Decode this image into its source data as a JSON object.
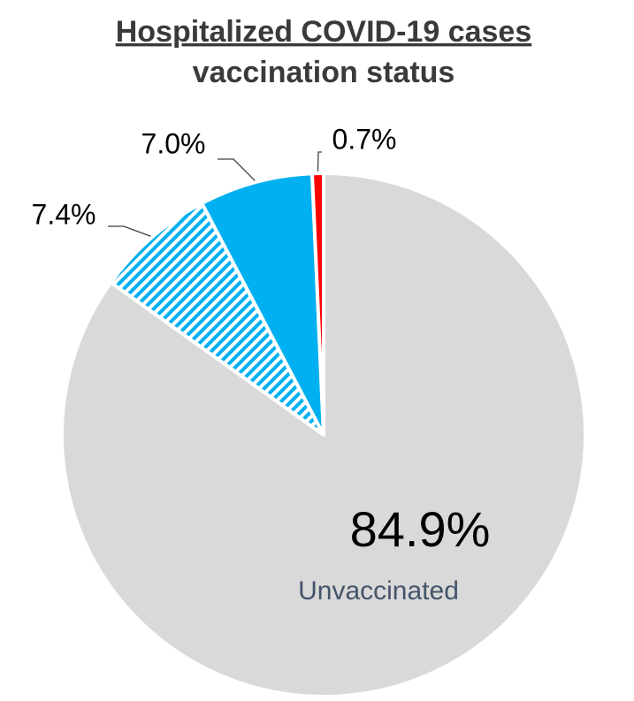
{
  "chart_data": {
    "type": "pie",
    "title": "Hospitalized COVID-19 cases",
    "subtitle": "vaccination status",
    "categories": [
      "Unvaccinated",
      null,
      null,
      null
    ],
    "values": [
      84.9,
      7.4,
      7.0,
      0.7
    ],
    "value_labels": [
      "84.9%",
      "7.4%",
      "7.0%",
      "0.7%"
    ],
    "colors": [
      "#d9d9d9",
      "#00b0f0",
      "#00b0f0",
      "#ff0000"
    ],
    "hatched": [
      false,
      true,
      false,
      false
    ]
  }
}
